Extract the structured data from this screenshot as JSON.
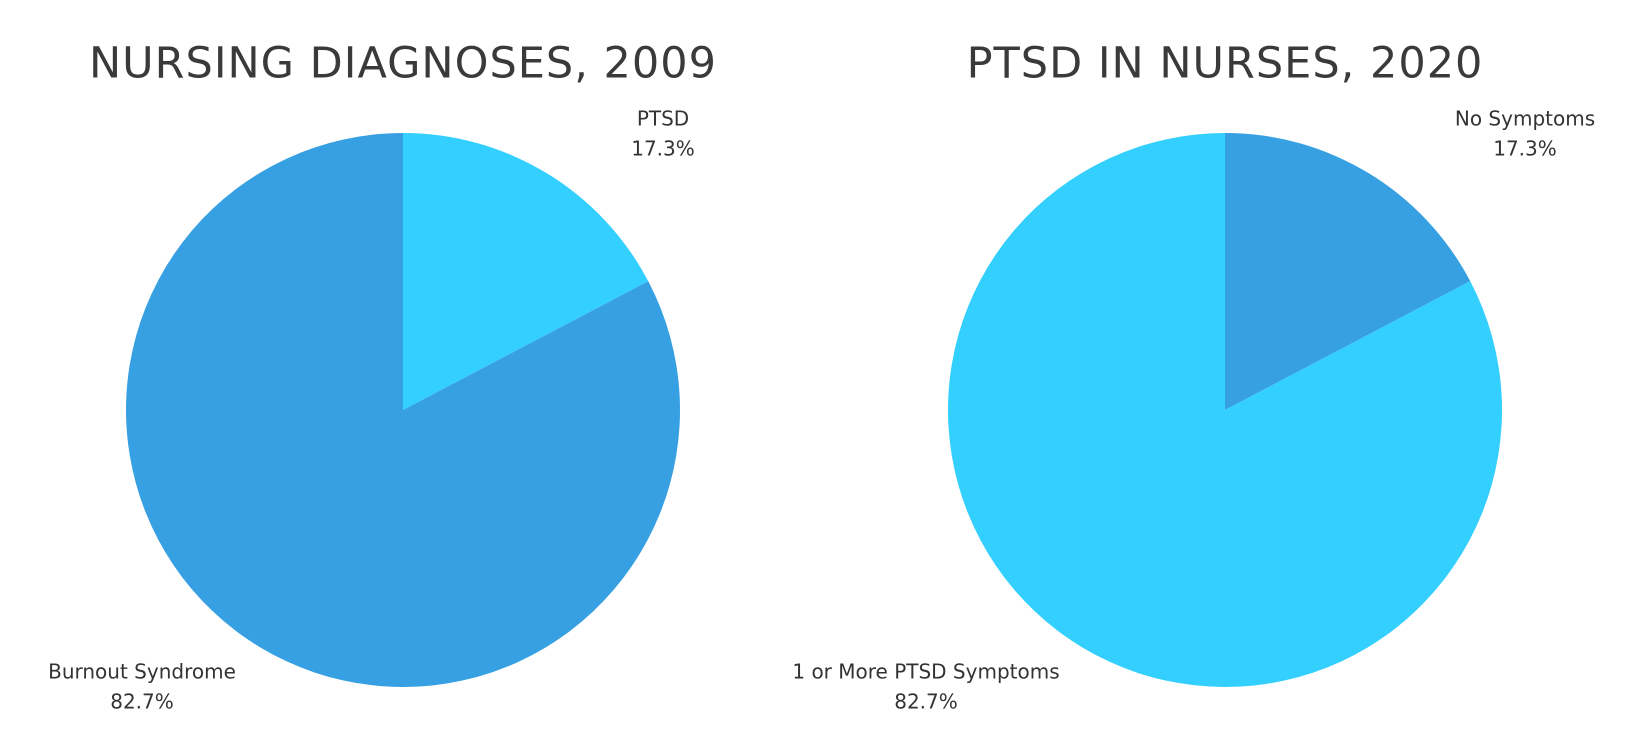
{
  "chart_data": [
    {
      "type": "pie",
      "title": "NURSING DIAGNOSES, 2009",
      "categories": [
        "PTSD",
        "Burnout Syndrome"
      ],
      "values": [
        17.3,
        82.7
      ],
      "value_labels": [
        "17.3%",
        "82.7%"
      ],
      "colors": [
        "#33cfff",
        "#36a0e3"
      ]
    },
    {
      "type": "pie",
      "title": "PTSD IN NURSES, 2020",
      "categories": [
        "No Symptoms",
        "1 or More PTSD Symptoms"
      ],
      "values": [
        17.3,
        82.7
      ],
      "value_labels": [
        "17.3%",
        "82.7%"
      ],
      "colors": [
        "#36a0e3",
        "#33cfff"
      ]
    }
  ]
}
